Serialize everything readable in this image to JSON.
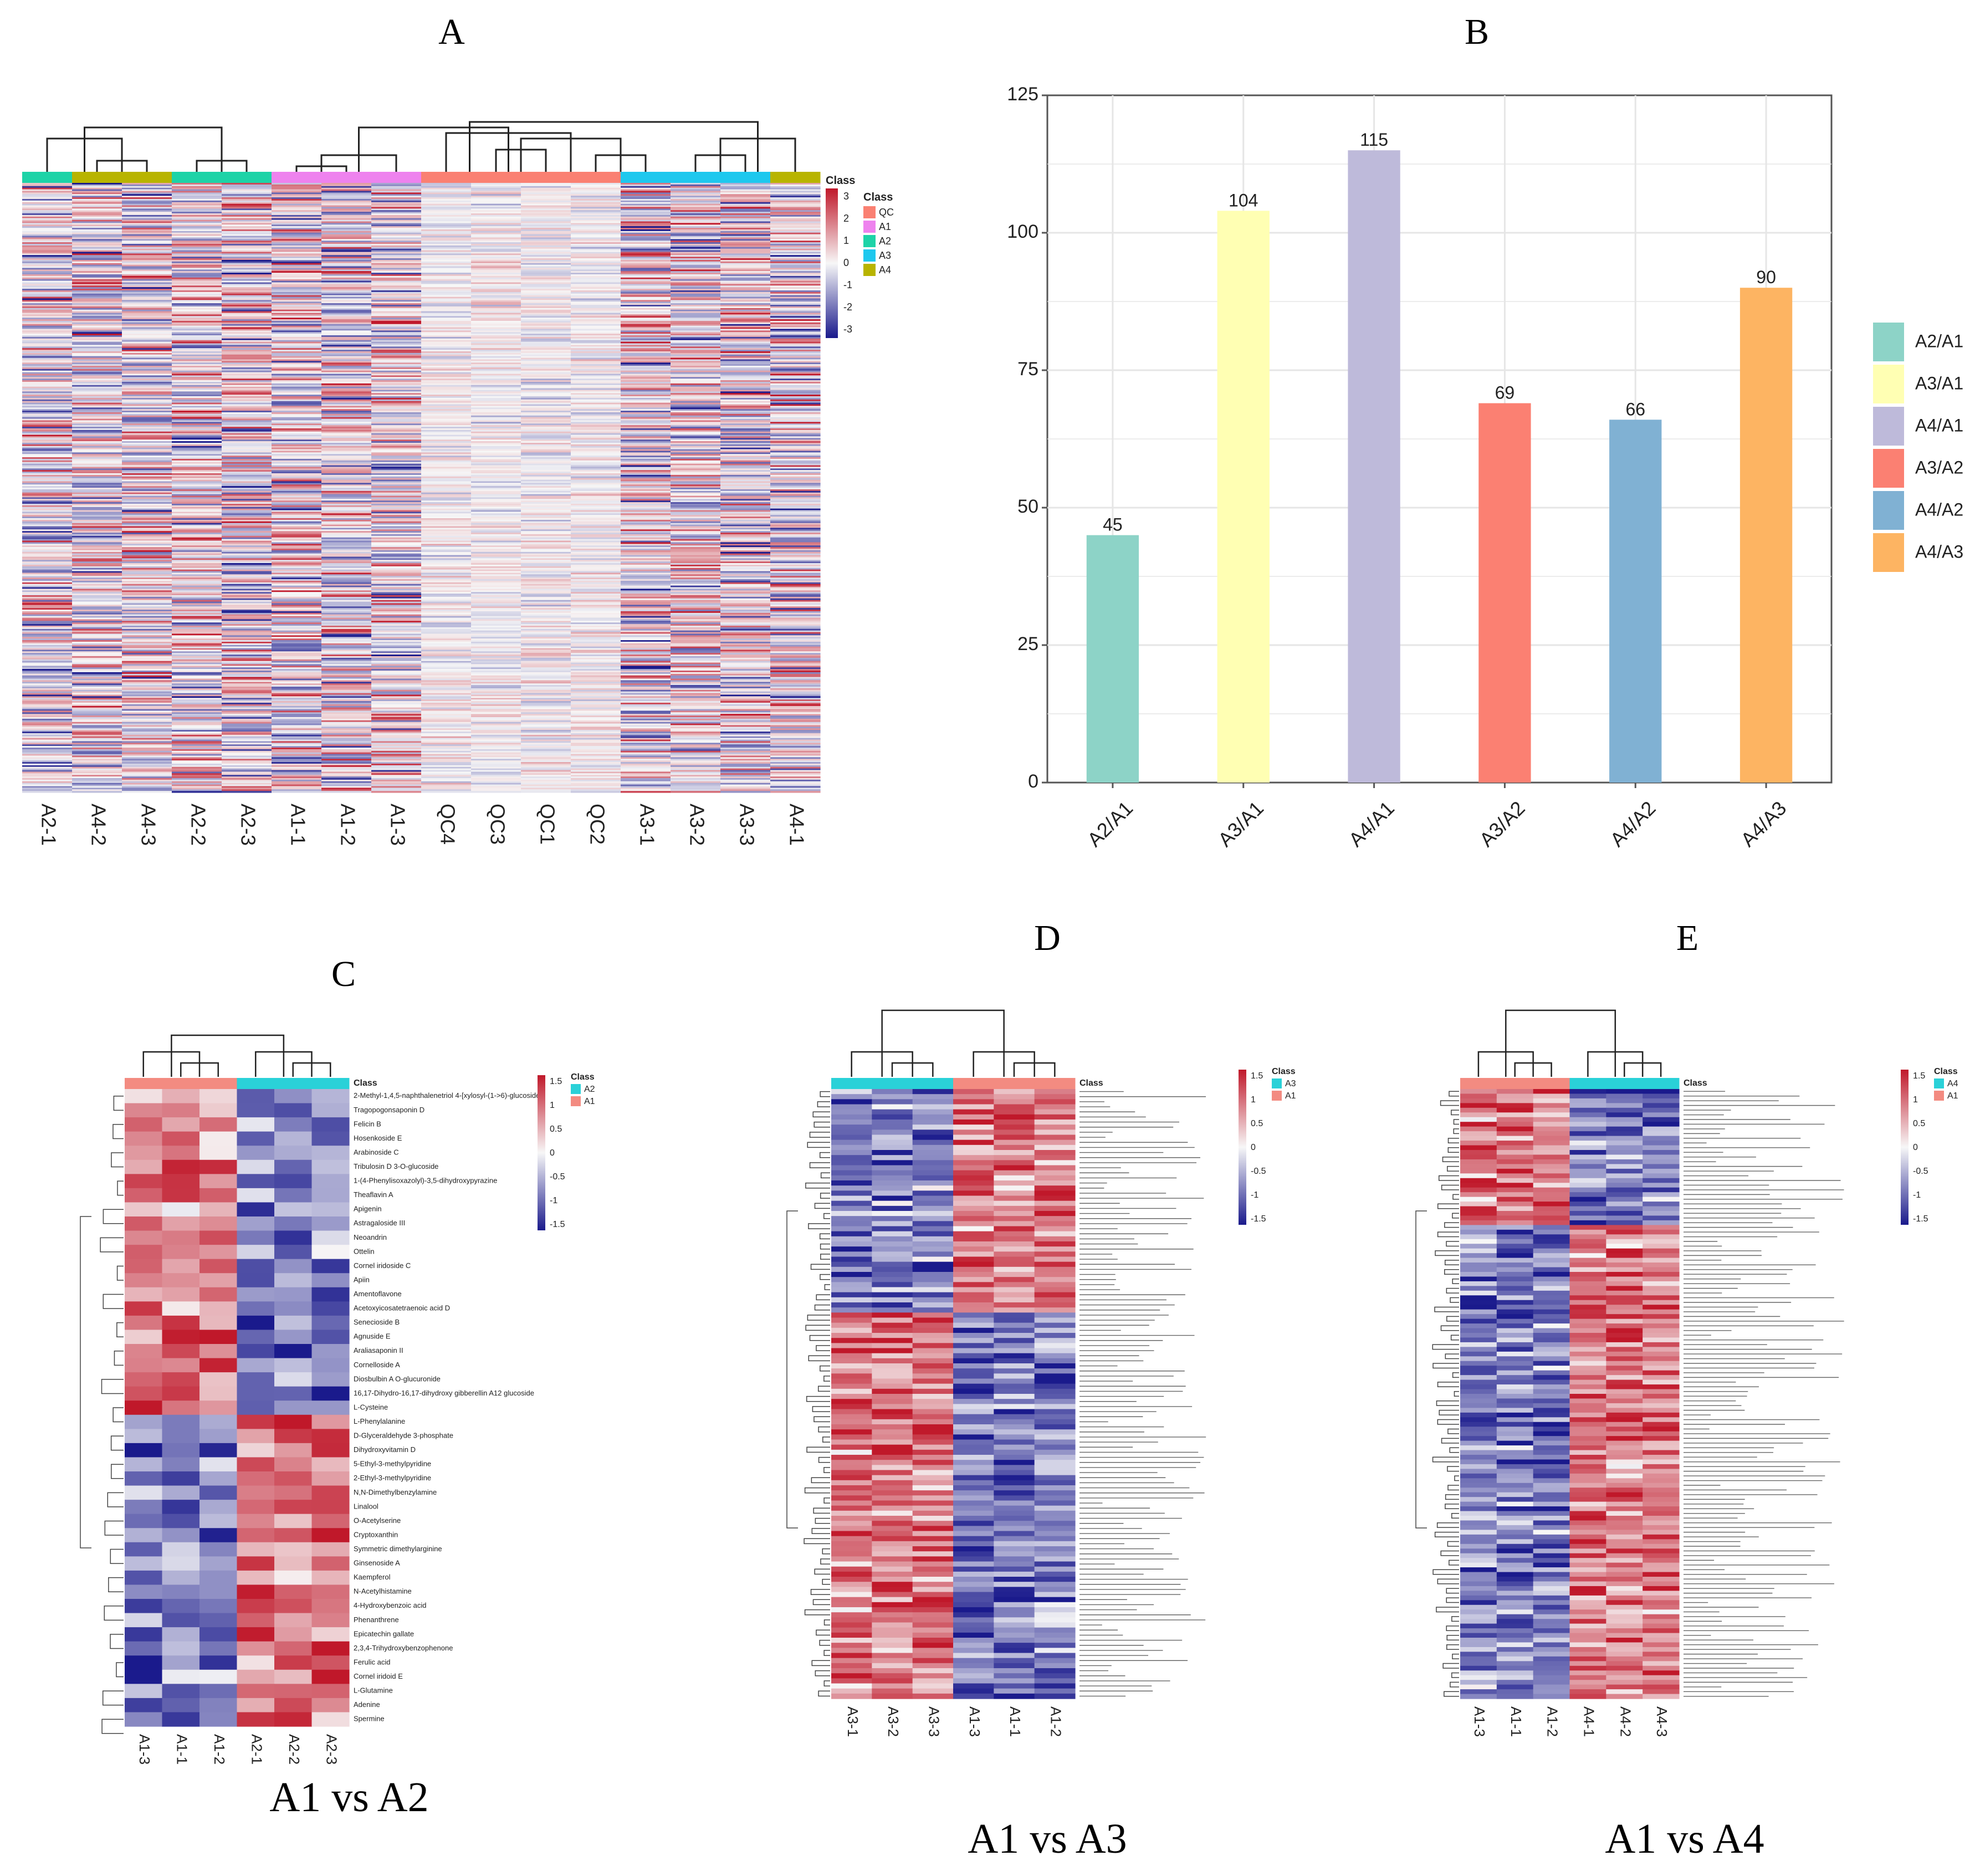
{
  "panels": {
    "A": "A",
    "B": "B",
    "C": "C",
    "D": "D",
    "E": "E"
  },
  "captions": {
    "c": "A1 vs A2",
    "d": "A1 vs A3",
    "e": "A1 vs A4"
  },
  "colors": {
    "blue": "#1a1a8c",
    "white": "#f7f7f7",
    "red": "#c0182a"
  },
  "chart_data": [
    {
      "id": "A",
      "type": "heatmap",
      "columns": [
        "A2-1",
        "A4-2",
        "A4-3",
        "A2-2",
        "A2-3",
        "A1-1",
        "A1-2",
        "A1-3",
        "QC4",
        "QC3",
        "QC1",
        "QC2",
        "A3-1",
        "A3-2",
        "A3-3",
        "A4-1"
      ],
      "column_classes": [
        "A2",
        "A4",
        "A4",
        "A2",
        "A2",
        "A1",
        "A1",
        "A1",
        "QC",
        "QC",
        "QC",
        "QC",
        "A3",
        "A3",
        "A3",
        "A4"
      ],
      "legend_title": "Class",
      "classes": [
        {
          "name": "QC",
          "color": "#fa8072"
        },
        {
          "name": "A1",
          "color": "#ee82ee"
        },
        {
          "name": "A2",
          "color": "#1dd3a7"
        },
        {
          "name": "A3",
          "color": "#1ec8ee"
        },
        {
          "name": "A4",
          "color": "#b8b400"
        }
      ],
      "scale_ticks": [
        "3",
        "2",
        "1",
        "0",
        "-1",
        "-2",
        "-3"
      ],
      "scale_range": [
        -3,
        3
      ]
    },
    {
      "id": "B",
      "type": "bar",
      "categories": [
        "A2/A1",
        "A3/A1",
        "A4/A1",
        "A3/A2",
        "A4/A2",
        "A4/A3"
      ],
      "values": [
        45,
        104,
        115,
        69,
        66,
        90
      ],
      "value_labels": [
        "45",
        "104",
        "115",
        "69",
        "66",
        "90"
      ],
      "colors": [
        "#8dd3c7",
        "#ffffb3",
        "#bebada",
        "#fb8072",
        "#80b1d3",
        "#fdb462"
      ],
      "ylim": [
        0,
        125
      ],
      "yticks": [
        "0",
        "25",
        "50",
        "75",
        "100",
        "125"
      ],
      "legend": [
        "A2/A1",
        "A3/A1",
        "A4/A1",
        "A3/A2",
        "A4/A2",
        "A4/A3"
      ],
      "legend_position": "right",
      "grid": true
    },
    {
      "id": "C",
      "type": "heatmap",
      "columns": [
        "A1-3",
        "A1-1",
        "A1-2",
        "A2-1",
        "A2-2",
        "A2-3"
      ],
      "class_label": "Class",
      "legend": [
        {
          "name": "A2",
          "color": "#2ad1d8"
        },
        {
          "name": "A1",
          "color": "#f38b81"
        }
      ],
      "scale_ticks": [
        "1.5",
        "1",
        "0.5",
        "0",
        "-0.5",
        "-1",
        "-1.5"
      ],
      "rows": [
        "2-Methyl-1,4,5-naphthalenetriol 4-[xylosyl-(1->6)-glucoside]",
        "Tragopogonsaponin D",
        "Felicin B",
        "Hosenkoside E",
        "Arabinoside C",
        "Tribulosin D 3-O-glucoside",
        "1-(4-Phenylisoxazolyl)-3,5-dihydroxypyrazine",
        "Theaflavin A",
        "Apigenin",
        "Astragaloside III",
        "Neoandrin",
        "Ottelin",
        "Cornel iridoside C",
        "Apiin",
        "Amentoflavone",
        "Acetoxyicosatetraenoic acid D",
        "Senecioside B",
        "Agnuside E",
        "Araliasaponin II",
        "Cornelloside A",
        "Diosbulbin A O-glucuronide",
        "16,17-Dihydro-16,17-dihydroxy gibberellin A12 glucoside",
        "L-Cysteine",
        "L-Phenylalanine",
        "D-Glyceraldehyde 3-phosphate",
        "Dihydroxyvitamin D",
        "5-Ethyl-3-methylpyridine",
        "2-Ethyl-3-methylpyridine",
        "N,N-Dimethylbenzylamine",
        "Linalool",
        "O-Acetylserine",
        "Cryptoxanthin",
        "Symmetric dimethylarginine",
        "Ginsenoside A",
        "Kaempferol",
        "N-Acetylhistamine",
        "4-Hydroxybenzoic acid",
        "Phenanthrene",
        "Epicatechin gallate",
        "2,3,4-Trihydroxybenzophenone",
        "Ferulic acid",
        "Cornel iridoid E",
        "L-Glutamine",
        "Adenine",
        "Spermine"
      ]
    },
    {
      "id": "D",
      "type": "heatmap",
      "columns": [
        "A3-1",
        "A3-2",
        "A3-3",
        "A1-3",
        "A1-1",
        "A1-2"
      ],
      "class_label": "Class",
      "legend": [
        {
          "name": "A3",
          "color": "#2ad1d8"
        },
        {
          "name": "A1",
          "color": "#f38b81"
        }
      ],
      "scale_ticks": [
        "1.5",
        "1",
        "0.5",
        "0",
        "-0.5",
        "-1",
        "-1.5"
      ]
    },
    {
      "id": "E",
      "type": "heatmap",
      "columns": [
        "A1-3",
        "A1-1",
        "A1-2",
        "A4-1",
        "A4-2",
        "A4-3"
      ],
      "class_label": "Class",
      "legend": [
        {
          "name": "A4",
          "color": "#2ad1d8"
        },
        {
          "name": "A1",
          "color": "#f38b81"
        }
      ],
      "scale_ticks": [
        "1.5",
        "1",
        "0.5",
        "0",
        "-0.5",
        "-1",
        "-1.5"
      ]
    }
  ]
}
